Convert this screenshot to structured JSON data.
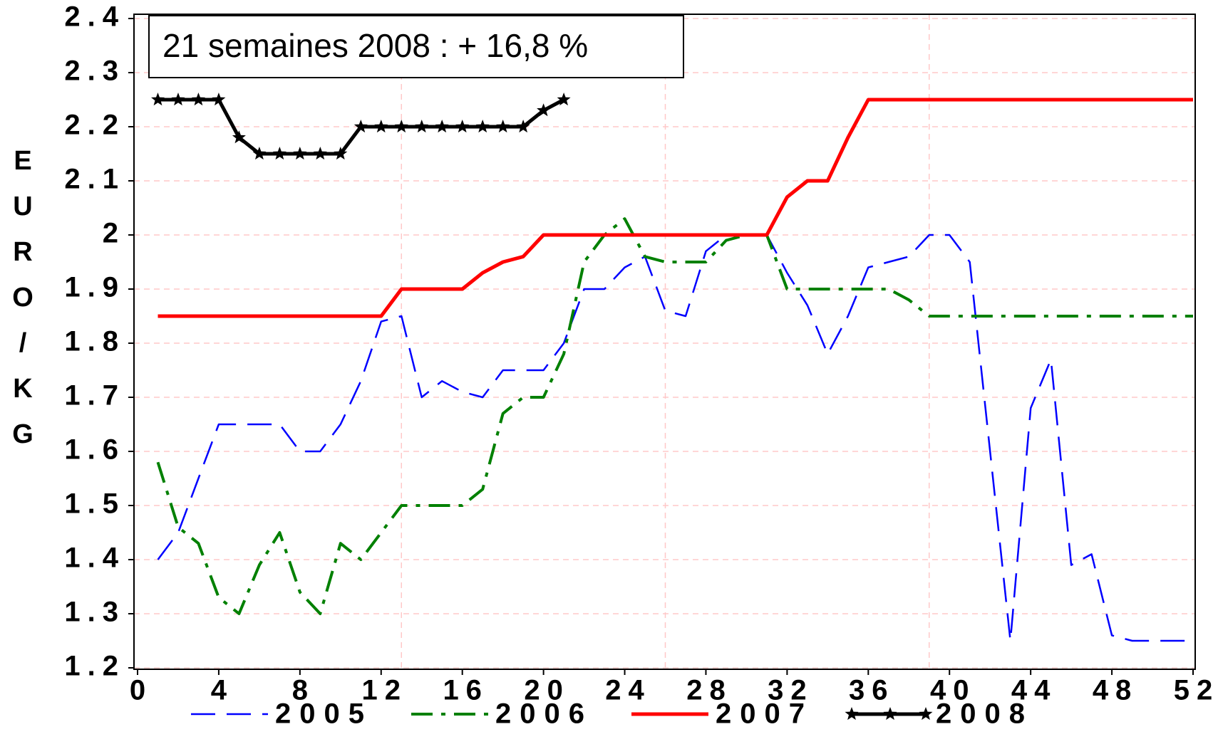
{
  "chart_data": {
    "type": "line",
    "annotation": "21 semaines 2008 : + 16,8 %",
    "ylabel": "EURO/KG",
    "x": [
      1,
      2,
      3,
      4,
      5,
      6,
      7,
      8,
      9,
      10,
      11,
      12,
      13,
      14,
      15,
      16,
      17,
      18,
      19,
      20,
      21,
      22,
      23,
      24,
      25,
      26,
      27,
      28,
      29,
      30,
      31,
      32,
      33,
      34,
      35,
      36,
      37,
      38,
      39,
      40,
      41,
      42,
      43,
      44,
      45,
      46,
      47,
      48,
      49,
      50,
      51,
      52
    ],
    "series": [
      {
        "name": "2005",
        "color": "#0000ff",
        "style": "dashed",
        "values": [
          1.4,
          1.45,
          1.55,
          1.65,
          1.65,
          1.65,
          1.65,
          1.6,
          1.6,
          1.65,
          1.73,
          1.84,
          1.85,
          1.7,
          1.73,
          1.71,
          1.7,
          1.75,
          1.75,
          1.75,
          1.8,
          1.9,
          1.9,
          1.94,
          1.96,
          1.86,
          1.85,
          1.97,
          2.0,
          2.0,
          2.0,
          1.93,
          1.87,
          1.78,
          1.85,
          1.94,
          1.95,
          1.96,
          2.0,
          2.0,
          1.95,
          1.6,
          1.25,
          1.68,
          1.77,
          1.39,
          1.41,
          1.26,
          1.25,
          1.25,
          1.25,
          1.25
        ]
      },
      {
        "name": "2006",
        "color": "#008000",
        "style": "dashdot",
        "values": [
          1.58,
          1.46,
          1.43,
          1.33,
          1.3,
          1.39,
          1.45,
          1.34,
          1.3,
          1.43,
          1.4,
          1.45,
          1.5,
          1.5,
          1.5,
          1.5,
          1.53,
          1.67,
          1.7,
          1.7,
          1.78,
          1.95,
          2.0,
          2.03,
          1.96,
          1.95,
          1.95,
          1.95,
          1.99,
          2.0,
          2.0,
          1.9,
          1.9,
          1.9,
          1.9,
          1.9,
          1.9,
          1.88,
          1.85,
          1.85,
          1.85,
          1.85,
          1.85,
          1.85,
          1.85,
          1.85,
          1.85,
          1.85,
          1.85,
          1.85,
          1.85,
          1.85
        ]
      },
      {
        "name": "2007",
        "color": "#ff0000",
        "style": "solid",
        "values": [
          1.85,
          1.85,
          1.85,
          1.85,
          1.85,
          1.85,
          1.85,
          1.85,
          1.85,
          1.85,
          1.85,
          1.85,
          1.9,
          1.9,
          1.9,
          1.9,
          1.93,
          1.95,
          1.96,
          2.0,
          2.0,
          2.0,
          2.0,
          2.0,
          2.0,
          2.0,
          2.0,
          2.0,
          2.0,
          2.0,
          2.0,
          2.07,
          2.1,
          2.1,
          2.18,
          2.25,
          2.25,
          2.25,
          2.25,
          2.25,
          2.25,
          2.25,
          2.25,
          2.25,
          2.25,
          2.25,
          2.25,
          2.25,
          2.25,
          2.25,
          2.25,
          2.25
        ]
      },
      {
        "name": "2008",
        "color": "#000000",
        "style": "stars",
        "values": [
          2.25,
          2.25,
          2.25,
          2.25,
          2.18,
          2.15,
          2.15,
          2.15,
          2.15,
          2.15,
          2.2,
          2.2,
          2.2,
          2.2,
          2.2,
          2.2,
          2.2,
          2.2,
          2.2,
          2.23,
          2.25,
          null,
          null,
          null,
          null,
          null,
          null,
          null,
          null,
          null,
          null,
          null,
          null,
          null,
          null,
          null,
          null,
          null,
          null,
          null,
          null,
          null,
          null,
          null,
          null,
          null,
          null,
          null,
          null,
          null,
          null,
          null
        ]
      }
    ],
    "xlim": [
      0,
      52
    ],
    "xticks": [
      0,
      4,
      8,
      12,
      16,
      20,
      24,
      28,
      32,
      36,
      40,
      44,
      48,
      52
    ],
    "ylim": [
      1.2,
      2.4
    ],
    "yticks": [
      1.2,
      1.3,
      1.4,
      1.5,
      1.6,
      1.7,
      1.8,
      1.9,
      2.0,
      2.1,
      2.2,
      2.3,
      2.4
    ],
    "grid": true,
    "xgrid": [
      13,
      26,
      39
    ]
  }
}
